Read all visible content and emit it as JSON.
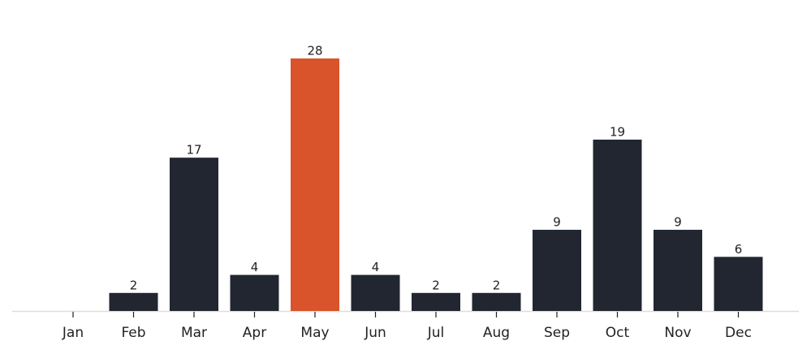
{
  "chart_data": {
    "type": "bar",
    "categories": [
      "Jan",
      "Feb",
      "Mar",
      "Apr",
      "May",
      "Jun",
      "Jul",
      "Aug",
      "Sep",
      "Oct",
      "Nov",
      "Dec"
    ],
    "values": [
      null,
      2,
      17,
      4,
      28,
      4,
      2,
      2,
      9,
      19,
      9,
      6
    ],
    "colors": [
      "#212631",
      "#212631",
      "#212631",
      "#212631",
      "#d9532b",
      "#212631",
      "#212631",
      "#212631",
      "#212631",
      "#212631",
      "#212631",
      "#212631"
    ]
  }
}
